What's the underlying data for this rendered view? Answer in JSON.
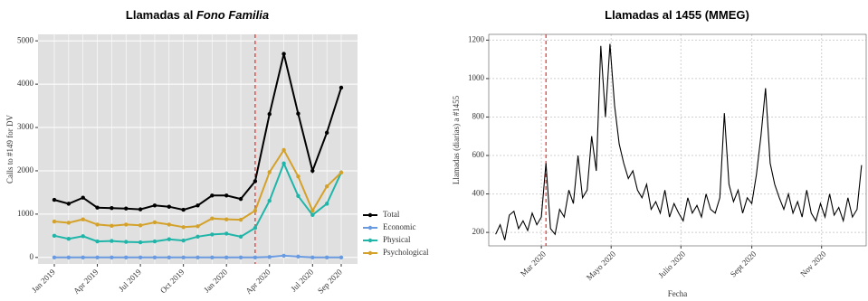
{
  "chart_data": [
    {
      "type": "line",
      "title": "Llamadas al",
      "title_italic": "Fono Familia",
      "categories": [
        "Jan 2019",
        null,
        null,
        "Apr 2019",
        null,
        null,
        "Jul 2019",
        null,
        null,
        "Oct 2019",
        null,
        null,
        "Jan 2020",
        null,
        null,
        "Apr 2020",
        null,
        null,
        "Jul 2020",
        null,
        "Sep 2020"
      ],
      "y_label": "Calls to #149 for DV",
      "ylim": [
        -150,
        5150
      ],
      "yticks": [
        0,
        1000,
        2000,
        3000,
        4000,
        5000
      ],
      "grid": true,
      "background": "#e0e0e0",
      "markers": true,
      "legend": "right",
      "vline": 14,
      "vline_color": "#e0302a",
      "series": [
        {
          "name": "Total",
          "color": "#000000",
          "values": [
            1330,
            1240,
            1380,
            1150,
            1140,
            1130,
            1110,
            1200,
            1170,
            1100,
            1200,
            1430,
            1430,
            1350,
            1760,
            3310,
            4700,
            3320,
            2000,
            2880,
            3920
          ]
        },
        {
          "name": "Economic",
          "color": "#6a9be0",
          "values": [
            0,
            0,
            0,
            0,
            0,
            0,
            0,
            0,
            0,
            0,
            0,
            0,
            0,
            0,
            0,
            10,
            40,
            20,
            0,
            0,
            0
          ]
        },
        {
          "name": "Physical",
          "color": "#1fb5a8",
          "values": [
            500,
            430,
            490,
            370,
            380,
            360,
            350,
            370,
            420,
            390,
            480,
            530,
            550,
            480,
            680,
            1310,
            2170,
            1420,
            980,
            1240,
            1960
          ]
        },
        {
          "name": "Psychological",
          "color": "#d4a22a",
          "values": [
            830,
            800,
            880,
            760,
            730,
            760,
            740,
            810,
            760,
            700,
            720,
            900,
            880,
            870,
            1080,
            1970,
            2480,
            1870,
            1080,
            1640,
            1960
          ]
        }
      ]
    },
    {
      "type": "line",
      "title": "Llamadas al 1455 (MMEG)",
      "x_label": "Fecha",
      "y_label": "Llamadas (diarias) a #1455",
      "xlim": [
        15,
        345
      ],
      "xticks": [
        {
          "value": 61,
          "label": "Mar 2020"
        },
        {
          "value": 122,
          "label": "Mayo 2020"
        },
        {
          "value": 183,
          "label": "Julio 2020"
        },
        {
          "value": 245,
          "label": "Sept 2020"
        },
        {
          "value": 306,
          "label": "Nov 2020"
        }
      ],
      "ylim": [
        130,
        1230
      ],
      "yticks": [
        200,
        400,
        600,
        800,
        1000,
        1200
      ],
      "grid": true,
      "background": "#ffffff",
      "markers": false,
      "vline": 65,
      "vline_color": "#e0302a",
      "x": [
        21,
        25,
        29,
        33,
        37,
        41,
        45,
        49,
        53,
        57,
        61,
        65,
        69,
        73,
        77,
        81,
        85,
        89,
        93,
        97,
        101,
        105,
        109,
        113,
        117,
        121,
        125,
        129,
        133,
        137,
        141,
        145,
        149,
        153,
        157,
        161,
        165,
        169,
        173,
        177,
        181,
        185,
        189,
        193,
        197,
        201,
        205,
        209,
        213,
        217,
        221,
        225,
        229,
        233,
        237,
        241,
        245,
        249,
        253,
        257,
        261,
        265,
        269,
        273,
        277,
        281,
        285,
        289,
        293,
        297,
        301,
        305,
        309,
        313,
        317,
        321,
        325,
        329,
        333,
        337,
        341
      ],
      "series": [
        {
          "color": "#000000",
          "values": [
            190,
            240,
            160,
            290,
            310,
            220,
            260,
            210,
            300,
            240,
            280,
            560,
            220,
            190,
            320,
            280,
            420,
            350,
            600,
            380,
            420,
            700,
            520,
            1170,
            800,
            1180,
            860,
            660,
            560,
            480,
            520,
            420,
            380,
            450,
            320,
            360,
            300,
            420,
            280,
            350,
            300,
            260,
            380,
            300,
            340,
            280,
            400,
            320,
            300,
            380,
            820,
            450,
            360,
            420,
            300,
            380,
            350,
            500,
            700,
            950,
            560,
            450,
            380,
            320,
            400,
            300,
            360,
            280,
            420,
            300,
            260,
            350,
            280,
            400,
            290,
            330,
            260,
            380,
            280,
            320,
            550
          ]
        }
      ]
    }
  ]
}
